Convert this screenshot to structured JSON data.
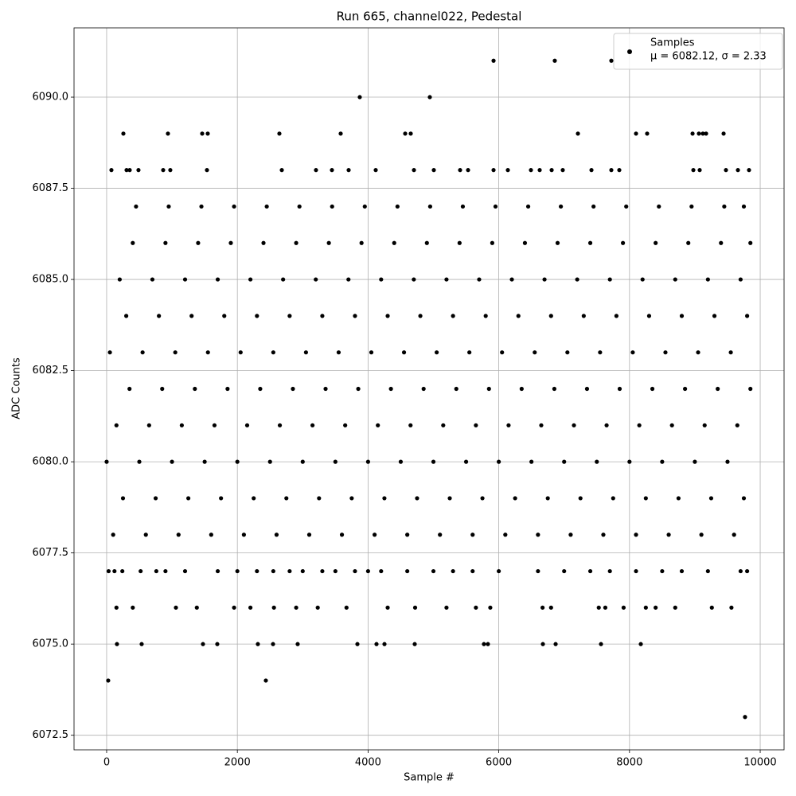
{
  "chart_data": {
    "type": "scatter",
    "title": "Run 665, channel022, Pedestal",
    "x_label": "Sample #",
    "y_label": "ADC Counts",
    "xlim": [
      -499,
      10365
    ],
    "ylim": [
      6072.1,
      6091.9
    ],
    "xticks": [
      0,
      2000,
      4000,
      6000,
      8000,
      10000
    ],
    "yticks": [
      6072.5,
      {
        "value": 6075,
        "label": "6075.0"
      },
      6077.5,
      {
        "value": 6080,
        "label": "6080.0"
      },
      6082.5,
      {
        "value": 6085,
        "label": "6085.0"
      },
      6087.5,
      {
        "value": 6090,
        "label": "6090.0"
      }
    ],
    "grid": true,
    "legend_position": "upper right",
    "legend_subtitle": "μ = 6082.12, σ = 2.33",
    "series": [
      {
        "name": "Samples",
        "color": "#000000",
        "x": [
          5920,
          6857,
          7722,
          3873,
          4945,
          256,
          938,
          1462,
          1547,
          2643,
          3581,
          4568,
          4653,
          7211,
          8100,
          8270,
          8965,
          9062,
          9123,
          9172,
          9440,
          73,
          305,
          353,
          487,
          865,
          974,
          1535,
          2680,
          3203,
          3447,
          3703,
          4117,
          4702,
          5006,
          5408,
          5530,
          5920,
          6139,
          6492,
          6626,
          6809,
          6979,
          7418,
          7722,
          7844,
          8977,
          9074,
          9476,
          9659,
          9829,
          9768,
          24,
          2436,
          158,
          536,
          1474,
          1693,
          2314,
          2546,
          2923,
          3837,
          4129,
          4251,
          4714,
          5773,
          5834,
          6675,
          6870,
          7564,
          8173,
          150,
          400,
          1060,
          1380,
          1950,
          2200,
          2560,
          2900,
          3230,
          3670,
          4300,
          4720,
          5200,
          5650,
          5870,
          6670,
          6800,
          7530,
          7630,
          7910,
          8250,
          8400,
          8700,
          9260,
          9560,
          30,
          120,
          240,
          520,
          760,
          900,
          1200,
          1700,
          2000,
          2300,
          2550,
          2800,
          3000,
          3300,
          3500,
          3800,
          4000,
          4200,
          4600,
          5000,
          5300,
          5600,
          6000,
          6600,
          7000,
          7400,
          7700,
          8100,
          8500,
          8800,
          9200,
          9700,
          9800,
          100,
          600,
          1100,
          1600,
          2100,
          2600,
          3100,
          3600,
          4100,
          4600,
          5100,
          5600,
          6100,
          6600,
          7100,
          7600,
          8100,
          8600,
          9100,
          9600,
          250,
          750,
          1250,
          1750,
          2250,
          2750,
          3250,
          3750,
          4250,
          4750,
          5250,
          5750,
          6250,
          6750,
          7250,
          7750,
          8250,
          8750,
          9250,
          9750,
          0,
          500,
          1000,
          1500,
          2000,
          2500,
          3000,
          3500,
          4000,
          4500,
          5000,
          5500,
          6000,
          6500,
          7000,
          7500,
          8000,
          8500,
          9000,
          9500,
          150,
          650,
          1150,
          1650,
          2150,
          2650,
          3150,
          3650,
          4150,
          4650,
          5150,
          5650,
          6150,
          6650,
          7150,
          7650,
          8150,
          8650,
          9150,
          9650,
          350,
          850,
          1350,
          1850,
          2350,
          2850,
          3350,
          3850,
          4350,
          4850,
          5350,
          5850,
          6350,
          6850,
          7350,
          7850,
          8350,
          8850,
          9350,
          9850,
          50,
          550,
          1050,
          1550,
          2050,
          2550,
          3050,
          3550,
          4050,
          4550,
          5050,
          5550,
          6050,
          6550,
          7050,
          7550,
          8050,
          8550,
          9050,
          9550,
          300,
          800,
          1300,
          1800,
          2300,
          2800,
          3300,
          3800,
          4300,
          4800,
          5300,
          5800,
          6300,
          6800,
          7300,
          7800,
          8300,
          8800,
          9300,
          9800,
          200,
          700,
          1200,
          1700,
          2200,
          2700,
          3200,
          3700,
          4200,
          4700,
          5200,
          5700,
          6200,
          6700,
          7200,
          7700,
          8200,
          8700,
          9200,
          9700,
          400,
          900,
          1400,
          1900,
          2400,
          2900,
          3400,
          3900,
          4400,
          4900,
          5400,
          5900,
          6400,
          6900,
          7400,
          7900,
          8400,
          8900,
          9400,
          9850,
          450,
          950,
          1450,
          1950,
          2450,
          2950,
          3450,
          3950,
          4450,
          4950,
          5450,
          5950,
          6450,
          6950,
          7450,
          7950,
          8450,
          8950,
          9450,
          9750
        ],
        "y": [
          6091,
          6091,
          6091,
          6090,
          6090,
          6089,
          6089,
          6089,
          6089,
          6089,
          6089,
          6089,
          6089,
          6089,
          6089,
          6089,
          6089,
          6089,
          6089,
          6089,
          6089,
          6088,
          6088,
          6088,
          6088,
          6088,
          6088,
          6088,
          6088,
          6088,
          6088,
          6088,
          6088,
          6088,
          6088,
          6088,
          6088,
          6088,
          6088,
          6088,
          6088,
          6088,
          6088,
          6088,
          6088,
          6088,
          6088,
          6088,
          6088,
          6088,
          6088,
          6073,
          6074,
          6074,
          6075,
          6075,
          6075,
          6075,
          6075,
          6075,
          6075,
          6075,
          6075,
          6075,
          6075,
          6075,
          6075,
          6075,
          6075,
          6075,
          6075,
          6076,
          6076,
          6076,
          6076,
          6076,
          6076,
          6076,
          6076,
          6076,
          6076,
          6076,
          6076,
          6076,
          6076,
          6076,
          6076,
          6076,
          6076,
          6076,
          6076,
          6076,
          6076,
          6076,
          6076,
          6076,
          6077,
          6077,
          6077,
          6077,
          6077,
          6077,
          6077,
          6077,
          6077,
          6077,
          6077,
          6077,
          6077,
          6077,
          6077,
          6077,
          6077,
          6077,
          6077,
          6077,
          6077,
          6077,
          6077,
          6077,
          6077,
          6077,
          6077,
          6077,
          6077,
          6077,
          6077,
          6077,
          6077,
          6078,
          6078,
          6078,
          6078,
          6078,
          6078,
          6078,
          6078,
          6078,
          6078,
          6078,
          6078,
          6078,
          6078,
          6078,
          6078,
          6078,
          6078,
          6078,
          6078,
          6079,
          6079,
          6079,
          6079,
          6079,
          6079,
          6079,
          6079,
          6079,
          6079,
          6079,
          6079,
          6079,
          6079,
          6079,
          6079,
          6079,
          6079,
          6079,
          6079,
          6080,
          6080,
          6080,
          6080,
          6080,
          6080,
          6080,
          6080,
          6080,
          6080,
          6080,
          6080,
          6080,
          6080,
          6080,
          6080,
          6080,
          6080,
          6080,
          6080,
          6081,
          6081,
          6081,
          6081,
          6081,
          6081,
          6081,
          6081,
          6081,
          6081,
          6081,
          6081,
          6081,
          6081,
          6081,
          6081,
          6081,
          6081,
          6081,
          6081,
          6082,
          6082,
          6082,
          6082,
          6082,
          6082,
          6082,
          6082,
          6082,
          6082,
          6082,
          6082,
          6082,
          6082,
          6082,
          6082,
          6082,
          6082,
          6082,
          6082,
          6083,
          6083,
          6083,
          6083,
          6083,
          6083,
          6083,
          6083,
          6083,
          6083,
          6083,
          6083,
          6083,
          6083,
          6083,
          6083,
          6083,
          6083,
          6083,
          6083,
          6084,
          6084,
          6084,
          6084,
          6084,
          6084,
          6084,
          6084,
          6084,
          6084,
          6084,
          6084,
          6084,
          6084,
          6084,
          6084,
          6084,
          6084,
          6084,
          6084,
          6085,
          6085,
          6085,
          6085,
          6085,
          6085,
          6085,
          6085,
          6085,
          6085,
          6085,
          6085,
          6085,
          6085,
          6085,
          6085,
          6085,
          6085,
          6085,
          6085,
          6086,
          6086,
          6086,
          6086,
          6086,
          6086,
          6086,
          6086,
          6086,
          6086,
          6086,
          6086,
          6086,
          6086,
          6086,
          6086,
          6086,
          6086,
          6086,
          6086,
          6087,
          6087,
          6087,
          6087,
          6087,
          6087,
          6087,
          6087,
          6087,
          6087,
          6087,
          6087,
          6087,
          6087,
          6087,
          6087,
          6087,
          6087,
          6087,
          6087
        ]
      }
    ]
  }
}
